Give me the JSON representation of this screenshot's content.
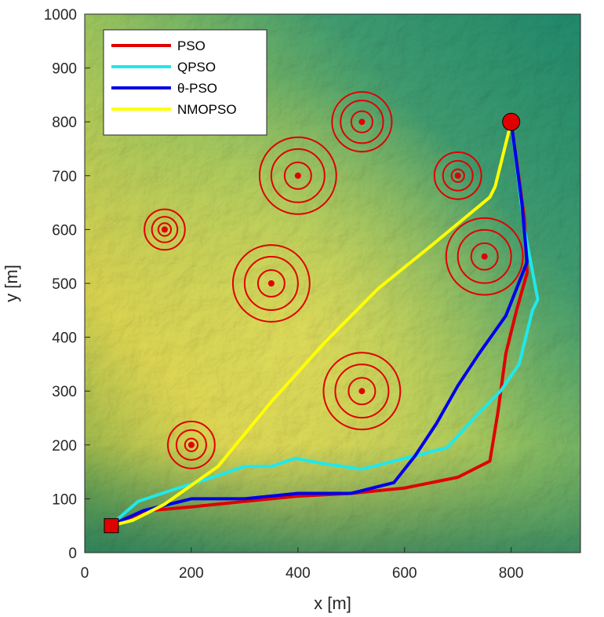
{
  "chart_data": {
    "type": "line",
    "title": "",
    "xlabel": "x [m]",
    "ylabel": "y [m]",
    "xlim": [
      0,
      930
    ],
    "ylim": [
      0,
      1000
    ],
    "xticks": [
      0,
      200,
      400,
      600,
      800
    ],
    "yticks": [
      0,
      100,
      200,
      300,
      400,
      500,
      600,
      700,
      800,
      900,
      1000
    ],
    "grid": false,
    "legend_position": "top-left",
    "background": "terrain-elevation-map",
    "start": {
      "x": 50,
      "y": 50,
      "marker": "square",
      "color": "#e00000"
    },
    "goal": {
      "x": 800,
      "y": 800,
      "marker": "circle",
      "color": "#e00000"
    },
    "obstacles": [
      {
        "x": 150,
        "y": 600,
        "radii": [
          12,
          24,
          38
        ]
      },
      {
        "x": 400,
        "y": 700,
        "radii": [
          25,
          50,
          72
        ]
      },
      {
        "x": 520,
        "y": 800,
        "radii": [
          20,
          40,
          56
        ]
      },
      {
        "x": 700,
        "y": 700,
        "radii": [
          12,
          28,
          44
        ]
      },
      {
        "x": 350,
        "y": 500,
        "radii": [
          25,
          50,
          72
        ]
      },
      {
        "x": 750,
        "y": 550,
        "radii": [
          25,
          50,
          72
        ]
      },
      {
        "x": 520,
        "y": 300,
        "radii": [
          25,
          50,
          72
        ]
      },
      {
        "x": 200,
        "y": 200,
        "radii": [
          12,
          28,
          44
        ]
      }
    ],
    "series": [
      {
        "name": "PSO",
        "color": "#e00000",
        "x": [
          50,
          70,
          120,
          200,
          300,
          400,
          500,
          600,
          700,
          760,
          775,
          790,
          810,
          830,
          825,
          800
        ],
        "y": [
          50,
          60,
          78,
          85,
          95,
          105,
          110,
          120,
          140,
          170,
          260,
          370,
          450,
          520,
          620,
          800
        ]
      },
      {
        "name": "QPSO",
        "color": "#20e8ec",
        "x": [
          50,
          65,
          100,
          160,
          240,
          300,
          350,
          395,
          450,
          520,
          600,
          680,
          740,
          780,
          815,
          840,
          850,
          825,
          800
        ],
        "y": [
          50,
          65,
          95,
          115,
          140,
          160,
          160,
          175,
          165,
          155,
          175,
          195,
          260,
          300,
          350,
          450,
          470,
          600,
          800
        ]
      },
      {
        "name": "θ-PSO",
        "color": "#0000e8",
        "x": [
          50,
          70,
          110,
          200,
          300,
          400,
          500,
          580,
          620,
          660,
          700,
          740,
          790,
          830,
          820,
          800
        ],
        "y": [
          50,
          60,
          78,
          100,
          100,
          110,
          110,
          130,
          180,
          240,
          310,
          370,
          440,
          540,
          650,
          800
        ]
      },
      {
        "name": "NMOPSO",
        "color": "#ffff00",
        "x": [
          50,
          90,
          150,
          250,
          350,
          450,
          550,
          650,
          760,
          770,
          800
        ],
        "y": [
          50,
          60,
          90,
          160,
          280,
          390,
          490,
          570,
          660,
          680,
          800
        ]
      }
    ]
  }
}
